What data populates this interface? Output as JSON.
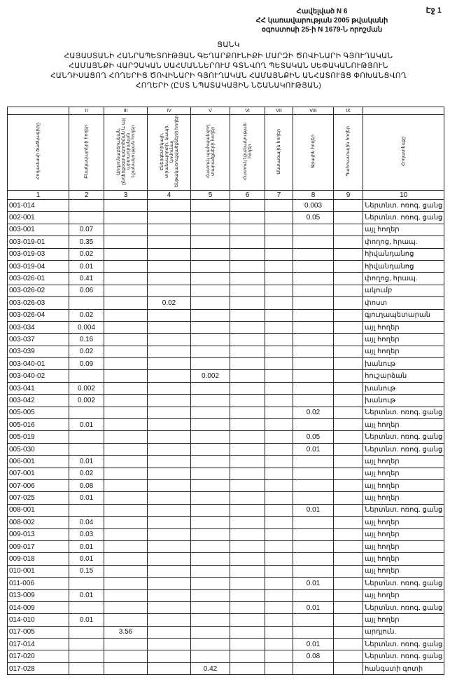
{
  "header": {
    "page": "Էջ 1",
    "annex": [
      "Հավելված N 6",
      "ՀՀ կառավարության 2005 թվականի",
      "օգոստոսի 25-ի N 1679-Ն որոշման"
    ]
  },
  "title": [
    "ՑԱՆԿ",
    "ՀԱՅԱՍՏԱՆԻ ՀԱՆՐԱՊԵՏՈՒԹՅԱՆ ԳԵՂԱՐՔՈՒՆԻՔԻ ՄԱՐԶԻ ԾՈՎԻՆԱՐԻ ԳՅՈՒՂԱԿԱՆ",
    "ՀԱՄԱՅՆՔԻ ՎԱՐՉԱԿԱՆ ՍԱՀՄԱՆՆԵՐՈՒՄ ԳՏՆՎՈՂ ՊԵՏԱԿԱՆ ՍԵՓԱԿԱՆՈՒԹՅՈՒՆ",
    "ՀԱՆԴԻՍԱՑՈՂ ՀՈՂԵՐԻՑ ԾՈՎԻՆԱՐԻ ԳՅՈՒՂԱԿԱՆ ՀԱՄԱՅՆՔԻՆ ԱՆՀԱՏՈՒՅՑ ՓՈԽԱՆՑՎՈՂ",
    "ՀՈՂԵՐԻ (ԸՍՏ ՆՊԱՏԱԿԱՅԻՆ ՆՇԱՆԱԿՈՒԹՅԱՆ)"
  ],
  "table": {
    "roman": [
      null,
      "II",
      "III",
      "IV",
      "V",
      "VI",
      "VII",
      "VIII",
      "IX",
      null
    ],
    "columns": [
      "Հողամասի ծածկագիրը",
      "Բնակավայրերի հողեր",
      "Արդյունաբերական, ընդերքօգտագործման և այլ արտադրական նշանակության հողեր",
      "Էներգետիկայի, տրանսպորտի, կապի, կոմունալ ենթակառուցվածքների հողեր",
      "Հատուկ պահպանվող տարածքների հողեր",
      "Հատուկ նշանակության հողեր",
      "Անտառային հողեր",
      "Ջրային հողեր",
      "Պահուստային հողեր",
      "Հողատեսքը"
    ],
    "numbers": [
      "1",
      "2",
      "3",
      "4",
      "5",
      "6",
      "7",
      "8",
      "9",
      "10"
    ],
    "rows": [
      [
        "001-014",
        null,
        null,
        null,
        null,
        null,
        null,
        "0.003",
        null,
        "Ներտնտ. ոռոգ. ցանց"
      ],
      [
        "002-001",
        null,
        null,
        null,
        null,
        null,
        null,
        "0.05",
        null,
        "Ներտնտ. ոռոգ. ցանց"
      ],
      [
        "003-001",
        "0.07",
        null,
        null,
        null,
        null,
        null,
        null,
        null,
        "այլ հողեր"
      ],
      [
        "003-019-01",
        "0.35",
        null,
        null,
        null,
        null,
        null,
        null,
        null,
        "փողոց, հրապ."
      ],
      [
        "003-019-03",
        "0.02",
        null,
        null,
        null,
        null,
        null,
        null,
        null,
        "հիվանդանոց"
      ],
      [
        "003-019-04",
        "0.01",
        null,
        null,
        null,
        null,
        null,
        null,
        null,
        "հիվանդանոց"
      ],
      [
        "003-026-01",
        "0.41",
        null,
        null,
        null,
        null,
        null,
        null,
        null,
        "փողոց, հրապ."
      ],
      [
        "003-026-02",
        "0.06",
        null,
        null,
        null,
        null,
        null,
        null,
        null,
        "ակումբ"
      ],
      [
        "003-026-03",
        null,
        null,
        "0.02",
        null,
        null,
        null,
        null,
        null,
        "փոստ"
      ],
      [
        "003-026-04",
        "0.02",
        null,
        null,
        null,
        null,
        null,
        null,
        null,
        "գյուղապետարան"
      ],
      [
        "003-034",
        "0.004",
        null,
        null,
        null,
        null,
        null,
        null,
        null,
        "այլ հողեր"
      ],
      [
        "003-037",
        "0.16",
        null,
        null,
        null,
        null,
        null,
        null,
        null,
        "այլ հողեր"
      ],
      [
        "003-039",
        "0.02",
        null,
        null,
        null,
        null,
        null,
        null,
        null,
        "այլ հողեր"
      ],
      [
        "003-040-01",
        "0.09",
        null,
        null,
        null,
        null,
        null,
        null,
        null,
        "խանութ"
      ],
      [
        "003-040-02",
        null,
        null,
        null,
        "0.002",
        null,
        null,
        null,
        null,
        "հուշարձան"
      ],
      [
        "003-041",
        "0.002",
        null,
        null,
        null,
        null,
        null,
        null,
        null,
        "խանութ"
      ],
      [
        "003-042",
        "0.002",
        null,
        null,
        null,
        null,
        null,
        null,
        null,
        "խանութ"
      ],
      [
        "005-005",
        null,
        null,
        null,
        null,
        null,
        null,
        "0.02",
        null,
        "Ներտնտ. ոռոգ. ցանց"
      ],
      [
        "005-016",
        "0.01",
        null,
        null,
        null,
        null,
        null,
        null,
        null,
        "այլ հողեր"
      ],
      [
        "005-019",
        null,
        null,
        null,
        null,
        null,
        null,
        "0.05",
        null,
        "Ներտնտ. ոռոգ. ցանց"
      ],
      [
        "005-030",
        null,
        null,
        null,
        null,
        null,
        null,
        "0.01",
        null,
        "Ներտնտ. ոռոգ. ցանց"
      ],
      [
        "006-001",
        "0.01",
        null,
        null,
        null,
        null,
        null,
        null,
        null,
        "այլ հողեր"
      ],
      [
        "007-001",
        "0.02",
        null,
        null,
        null,
        null,
        null,
        null,
        null,
        "այլ հողեր"
      ],
      [
        "007-006",
        "0.08",
        null,
        null,
        null,
        null,
        null,
        null,
        null,
        "այլ հողեր"
      ],
      [
        "007-025",
        "0.01",
        null,
        null,
        null,
        null,
        null,
        null,
        null,
        "այլ հողեր"
      ],
      [
        "008-001",
        null,
        null,
        null,
        null,
        null,
        null,
        "0.01",
        null,
        "Ներտնտ. ոռոգ. ցանց"
      ],
      [
        "008-002",
        "0.04",
        null,
        null,
        null,
        null,
        null,
        null,
        null,
        "այլ հողեր"
      ],
      [
        "009-013",
        "0.03",
        null,
        null,
        null,
        null,
        null,
        null,
        null,
        "այլ հողեր"
      ],
      [
        "009-017",
        "0.01",
        null,
        null,
        null,
        null,
        null,
        null,
        null,
        "այլ հողեր"
      ],
      [
        "009-018",
        "0.01",
        null,
        null,
        null,
        null,
        null,
        null,
        null,
        "այլ հողեր"
      ],
      [
        "010-001",
        "0.15",
        null,
        null,
        null,
        null,
        null,
        null,
        null,
        "այլ հողեր"
      ],
      [
        "011-006",
        null,
        null,
        null,
        null,
        null,
        null,
        "0.01",
        null,
        "Ներտնտ. ոռոգ. ցանց"
      ],
      [
        "013-009",
        "0.01",
        null,
        null,
        null,
        null,
        null,
        null,
        null,
        "այլ հողեր"
      ],
      [
        "014-009",
        null,
        null,
        null,
        null,
        null,
        null,
        "0.01",
        null,
        "Ներտնտ. ոռոգ. ցանց"
      ],
      [
        "014-010",
        "0.01",
        null,
        null,
        null,
        null,
        null,
        null,
        null,
        "այլ հողեր"
      ],
      [
        "017-005",
        null,
        "3.56",
        null,
        null,
        null,
        null,
        null,
        null,
        "արդյուն."
      ],
      [
        "017-014",
        null,
        null,
        null,
        null,
        null,
        null,
        "0.01",
        null,
        "Ներտնտ. ոռոգ. ցանց"
      ],
      [
        "017-020",
        null,
        null,
        null,
        null,
        null,
        null,
        "0.08",
        null,
        "Ներտնտ. ոռոգ. ցանց"
      ],
      [
        "017-028",
        null,
        null,
        null,
        "0.42",
        null,
        null,
        null,
        null,
        "հանգստի գոտի"
      ]
    ]
  }
}
